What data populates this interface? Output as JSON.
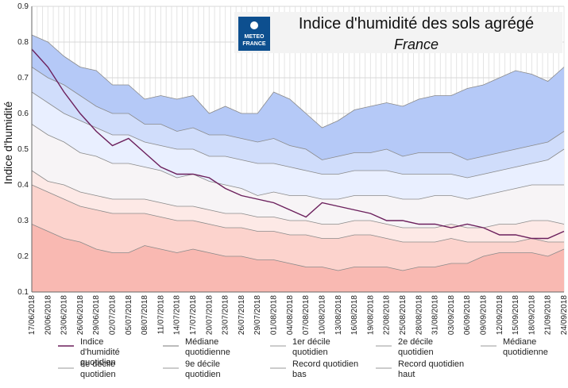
{
  "chart_data": {
    "type": "area",
    "title": "Indice d'humidité des sols agrégé",
    "subtitle": "France",
    "logo_text": [
      "METEO",
      "FRANCE"
    ],
    "ylabel": "Indice d'humidité",
    "xlabel": "",
    "ylim": [
      0.1,
      0.9
    ],
    "yticks": [
      "0.1",
      "0.2",
      "0.3",
      "0.4",
      "0.5",
      "0.6",
      "0.7",
      "0.8",
      "0.9"
    ],
    "grid": true,
    "categories": [
      "17/06/2018",
      "20/06/2018",
      "23/06/2018",
      "26/06/2018",
      "29/06/2018",
      "02/07/2018",
      "05/07/2018",
      "08/07/2018",
      "11/07/2018",
      "14/07/2018",
      "17/07/2018",
      "20/07/2018",
      "23/07/2018",
      "26/07/2018",
      "29/07/2018",
      "01/08/2018",
      "04/08/2018",
      "07/08/2018",
      "10/08/2018",
      "13/08/2018",
      "16/08/2018",
      "19/08/2018",
      "22/08/2018",
      "25/08/2018",
      "28/08/2018",
      "31/08/2018",
      "03/09/2018",
      "06/09/2018",
      "09/09/2018",
      "12/09/2018",
      "15/09/2018",
      "18/09/2018",
      "21/09/2018",
      "24/09/2018"
    ],
    "series": [
      {
        "name": "Record quotidien haut",
        "color": "#b5c9f7",
        "values": [
          0.82,
          0.8,
          0.76,
          0.73,
          0.72,
          0.68,
          0.68,
          0.64,
          0.65,
          0.64,
          0.65,
          0.6,
          0.62,
          0.6,
          0.6,
          0.66,
          0.64,
          0.6,
          0.56,
          0.58,
          0.61,
          0.62,
          0.63,
          0.62,
          0.64,
          0.65,
          0.65,
          0.67,
          0.68,
          0.7,
          0.72,
          0.71,
          0.69,
          0.73
        ]
      },
      {
        "name": "9e décile quotidien",
        "color": "#d0ddfb",
        "values": [
          0.73,
          0.7,
          0.68,
          0.65,
          0.62,
          0.6,
          0.6,
          0.57,
          0.57,
          0.55,
          0.56,
          0.54,
          0.54,
          0.53,
          0.52,
          0.53,
          0.51,
          0.5,
          0.47,
          0.48,
          0.49,
          0.49,
          0.5,
          0.48,
          0.49,
          0.49,
          0.49,
          0.47,
          0.48,
          0.49,
          0.5,
          0.51,
          0.52,
          0.55
        ]
      },
      {
        "name": "8e décile quotidien",
        "color": "#e9efff",
        "values": [
          0.66,
          0.63,
          0.6,
          0.58,
          0.56,
          0.54,
          0.54,
          0.52,
          0.51,
          0.5,
          0.5,
          0.48,
          0.48,
          0.47,
          0.46,
          0.46,
          0.45,
          0.44,
          0.43,
          0.43,
          0.44,
          0.44,
          0.44,
          0.43,
          0.43,
          0.43,
          0.43,
          0.42,
          0.43,
          0.44,
          0.45,
          0.46,
          0.47,
          0.5
        ]
      },
      {
        "name": "Médiane quotidienne",
        "color": "#f7f4f6",
        "values": [
          0.57,
          0.54,
          0.52,
          0.49,
          0.48,
          0.46,
          0.46,
          0.45,
          0.44,
          0.42,
          0.43,
          0.41,
          0.4,
          0.39,
          0.37,
          0.38,
          0.37,
          0.37,
          0.36,
          0.36,
          0.37,
          0.37,
          0.37,
          0.36,
          0.36,
          0.37,
          0.37,
          0.36,
          0.37,
          0.38,
          0.39,
          0.4,
          0.4,
          0.4
        ]
      },
      {
        "name": "2e décile quotidien",
        "color": "#fde9e6",
        "values": [
          0.44,
          0.41,
          0.4,
          0.38,
          0.37,
          0.36,
          0.36,
          0.36,
          0.35,
          0.34,
          0.34,
          0.33,
          0.32,
          0.32,
          0.31,
          0.31,
          0.3,
          0.3,
          0.29,
          0.29,
          0.3,
          0.3,
          0.29,
          0.28,
          0.28,
          0.28,
          0.29,
          0.28,
          0.28,
          0.29,
          0.29,
          0.3,
          0.3,
          0.29
        ]
      },
      {
        "name": "1er décile quotidien",
        "color": "#fcd3cd",
        "values": [
          0.4,
          0.38,
          0.36,
          0.34,
          0.33,
          0.32,
          0.32,
          0.32,
          0.31,
          0.3,
          0.3,
          0.29,
          0.28,
          0.28,
          0.27,
          0.27,
          0.26,
          0.26,
          0.25,
          0.25,
          0.26,
          0.26,
          0.25,
          0.24,
          0.24,
          0.24,
          0.25,
          0.24,
          0.24,
          0.24,
          0.24,
          0.25,
          0.24,
          0.24
        ]
      },
      {
        "name": "Record quotidien bas",
        "color": "#f9b9b2",
        "values": [
          0.29,
          0.27,
          0.25,
          0.24,
          0.22,
          0.21,
          0.21,
          0.23,
          0.22,
          0.21,
          0.22,
          0.21,
          0.2,
          0.2,
          0.19,
          0.19,
          0.18,
          0.17,
          0.17,
          0.16,
          0.17,
          0.17,
          0.17,
          0.16,
          0.17,
          0.17,
          0.18,
          0.18,
          0.2,
          0.21,
          0.21,
          0.21,
          0.2,
          0.22
        ]
      },
      {
        "name": "Indice d'humidité quotidien",
        "color": "#6b1f5c",
        "values": [
          0.78,
          0.73,
          0.66,
          0.6,
          0.55,
          0.51,
          0.53,
          0.49,
          0.45,
          0.43,
          0.43,
          0.42,
          0.39,
          0.37,
          0.36,
          0.35,
          0.33,
          0.31,
          0.35,
          0.34,
          0.33,
          0.32,
          0.3,
          0.3,
          0.29,
          0.29,
          0.28,
          0.29,
          0.28,
          0.26,
          0.26,
          0.25,
          0.25,
          0.27
        ]
      }
    ],
    "legend_position": "bottom",
    "legend": [
      {
        "label": "Indice d'humidité quotidien",
        "color": "#6b1f5c"
      },
      {
        "label": "Médiane quotidienne",
        "color": "#7a7a7a"
      },
      {
        "label": "1er décile quotidien",
        "color": "#9a9a9a"
      },
      {
        "label": "2e décile quotidien",
        "color": "#9a9a9a"
      },
      {
        "label": "Médiane quotidienne",
        "color": "#9a9a9a"
      },
      {
        "label": "8e décile quotidien",
        "color": "#9a9a9a"
      },
      {
        "label": "9e décile quotidien",
        "color": "#9a9a9a"
      },
      {
        "label": "Record quotidien bas",
        "color": "#9a9a9a"
      },
      {
        "label": "Record quotidien haut",
        "color": "#9a9a9a"
      }
    ]
  }
}
